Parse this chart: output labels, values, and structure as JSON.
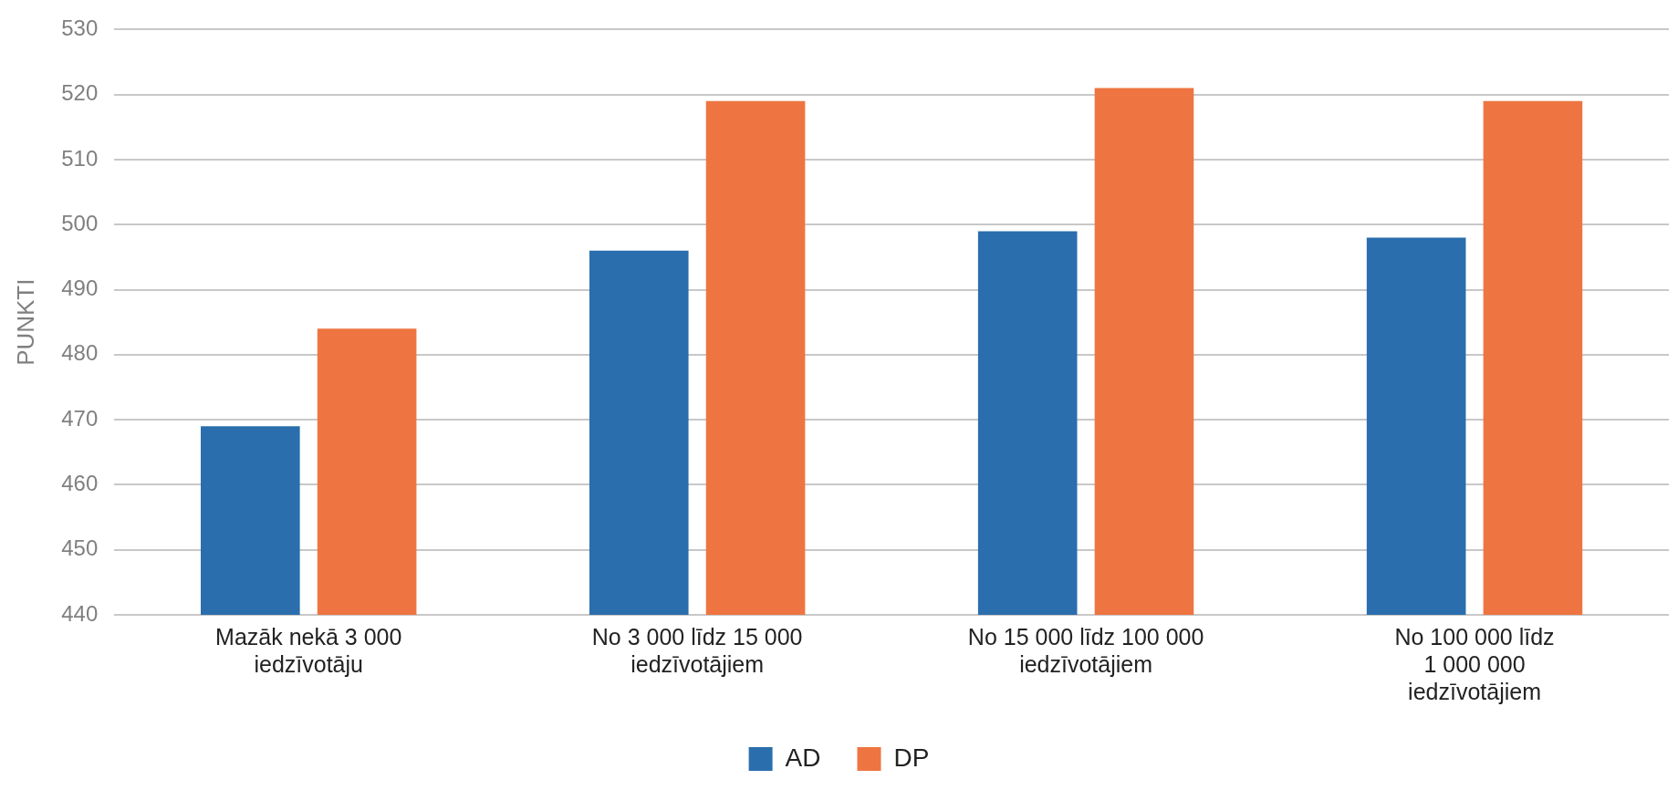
{
  "chart_data": {
    "type": "bar",
    "ylabel": "PUNKTI",
    "categories": [
      "Mazāk nekā 3 000 iedzīvotāju",
      "No 3 000 līdz 15 000 iedzīvotājiem",
      "No 15 000 līdz 100 000 iedzīvotājiem",
      "No 100 000 līdz 1 000 000 iedzīvotājiem"
    ],
    "series": [
      {
        "name": "AD",
        "color": "#2a6ead",
        "values": [
          469,
          496,
          499,
          498
        ]
      },
      {
        "name": "DP",
        "color": "#ee7541",
        "values": [
          484,
          519,
          521,
          519
        ]
      }
    ],
    "ylim": [
      440,
      530
    ],
    "yticks": [
      440,
      450,
      460,
      470,
      480,
      490,
      500,
      510,
      520,
      530
    ],
    "grid": "y",
    "legend": "bottom"
  }
}
